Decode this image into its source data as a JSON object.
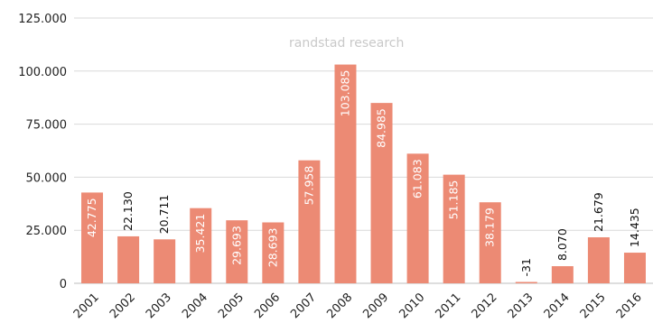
{
  "watermark": "randstad research",
  "colors": {
    "bar": "#ec8a74",
    "grid": "#d9d9d9",
    "label_inside": "#ffffff",
    "label_outside": "#111111"
  },
  "chart_data": {
    "type": "bar",
    "title": "",
    "xlabel": "",
    "ylabel": "",
    "ylim": [
      0,
      125000
    ],
    "grid": true,
    "yticks": [
      0,
      25000,
      50000,
      75000,
      100000,
      125000
    ],
    "ytick_labels": [
      "0",
      "25.000",
      "50.000",
      "75.000",
      "100.000",
      "125.000"
    ],
    "categories": [
      "2001",
      "2002",
      "2003",
      "2004",
      "2005",
      "2006",
      "2007",
      "2008",
      "2009",
      "2010",
      "2011",
      "2012",
      "2013",
      "2014",
      "2015",
      "2016"
    ],
    "values": [
      42775,
      22130,
      20711,
      35421,
      29693,
      28693,
      57958,
      103085,
      84985,
      61083,
      51185,
      38179,
      -31,
      8070,
      21679,
      14435
    ],
    "data_labels": [
      "42.775",
      "22.130",
      "20.711",
      "35.421",
      "29.693",
      "28.693",
      "57.958",
      "103.085",
      "84.985",
      "61.083",
      "51.185",
      "38.179",
      "-31",
      "8.070",
      "21.679",
      "14.435"
    ]
  }
}
